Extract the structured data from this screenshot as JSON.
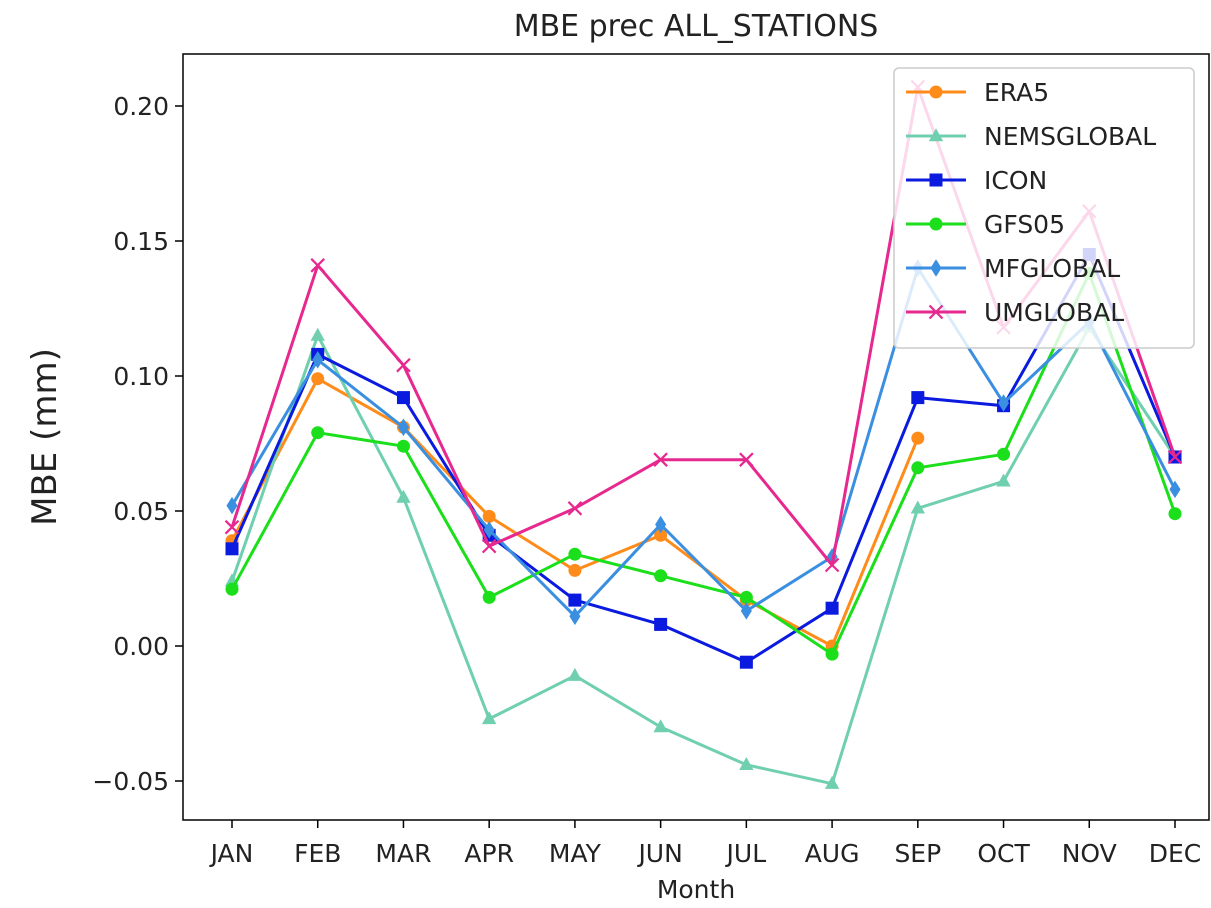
{
  "chart_data": {
    "type": "line",
    "title": "MBE prec ALL_STATIONS",
    "xlabel": "Month",
    "ylabel": "MBE (mm)",
    "categories": [
      "JAN",
      "FEB",
      "MAR",
      "APR",
      "MAY",
      "JUN",
      "JUL",
      "AUG",
      "SEP",
      "OCT",
      "NOV",
      "DEC"
    ],
    "ylim": [
      -0.065,
      0.22
    ],
    "yticks": [
      -0.05,
      0.0,
      0.05,
      0.1,
      0.15,
      0.2
    ],
    "ytick_labels": [
      "−0.05",
      "0.00",
      "0.05",
      "0.10",
      "0.15",
      "0.20"
    ],
    "legend_position": "top-right",
    "grid": false,
    "series": [
      {
        "name": "ERA5",
        "color": "#ff8c1a",
        "marker": "circle",
        "values": [
          0.039,
          0.099,
          0.081,
          0.048,
          0.028,
          0.041,
          0.017,
          0.0,
          0.077,
          null,
          null,
          null
        ]
      },
      {
        "name": "NEMSGLOBAL",
        "color": "#6fcfaf",
        "marker": "triangle",
        "values": [
          0.024,
          0.115,
          0.055,
          -0.027,
          -0.011,
          -0.03,
          -0.044,
          -0.051,
          0.051,
          0.061,
          0.118,
          0.07
        ]
      },
      {
        "name": "ICON",
        "color": "#0a1adf",
        "marker": "square",
        "values": [
          0.036,
          0.108,
          0.092,
          0.041,
          0.017,
          0.008,
          -0.006,
          0.014,
          0.092,
          0.089,
          0.145,
          0.07
        ]
      },
      {
        "name": "GFS05",
        "color": "#1adf1a",
        "marker": "circle",
        "values": [
          0.021,
          0.079,
          0.074,
          0.018,
          0.034,
          0.026,
          0.018,
          -0.003,
          0.066,
          0.071,
          0.138,
          0.049
        ]
      },
      {
        "name": "MFGLOBAL",
        "color": "#3a8fe0",
        "marker": "diamond",
        "values": [
          0.052,
          0.106,
          0.081,
          0.043,
          0.011,
          0.045,
          0.013,
          0.033,
          0.14,
          0.09,
          0.12,
          0.058
        ]
      },
      {
        "name": "UMGLOBAL",
        "color": "#e6288f",
        "marker": "x",
        "values": [
          0.044,
          0.141,
          0.104,
          0.037,
          0.051,
          0.069,
          0.069,
          0.03,
          0.207,
          0.118,
          0.161,
          0.07
        ]
      }
    ]
  }
}
